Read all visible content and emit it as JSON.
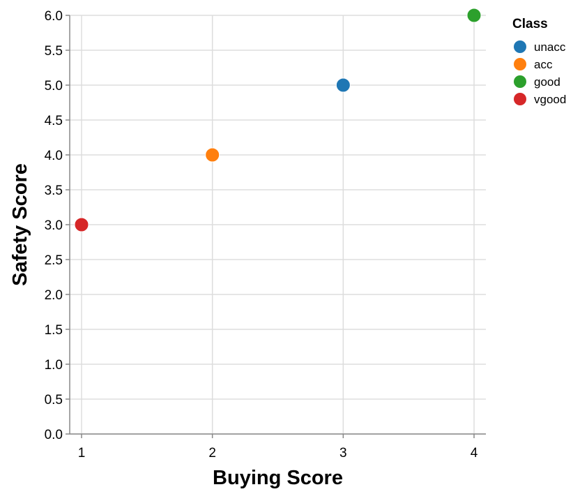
{
  "chart_data": {
    "type": "scatter",
    "title": "",
    "xlabel": "Buying Score",
    "ylabel": "Safety Score",
    "xlim": [
      1,
      4
    ],
    "ylim": [
      0,
      6
    ],
    "x_ticks": [
      1,
      2,
      3,
      4
    ],
    "y_ticks": [
      0,
      0.5,
      1,
      1.5,
      2,
      2.5,
      3,
      3.5,
      4,
      4.5,
      5,
      5.5,
      6
    ],
    "grid": true,
    "legend": {
      "title": "Class",
      "position": "top-right",
      "entries": [
        {
          "label": "unacc",
          "color": "#1f77b4"
        },
        {
          "label": "acc",
          "color": "#ff7f0e"
        },
        {
          "label": "good",
          "color": "#2ca02c"
        },
        {
          "label": "vgood",
          "color": "#d62728"
        }
      ]
    },
    "points": [
      {
        "x": 1,
        "y": 3,
        "class": "vgood"
      },
      {
        "x": 2,
        "y": 4,
        "class": "acc"
      },
      {
        "x": 3,
        "y": 5,
        "class": "unacc"
      },
      {
        "x": 4,
        "y": 6,
        "class": "good"
      }
    ]
  }
}
